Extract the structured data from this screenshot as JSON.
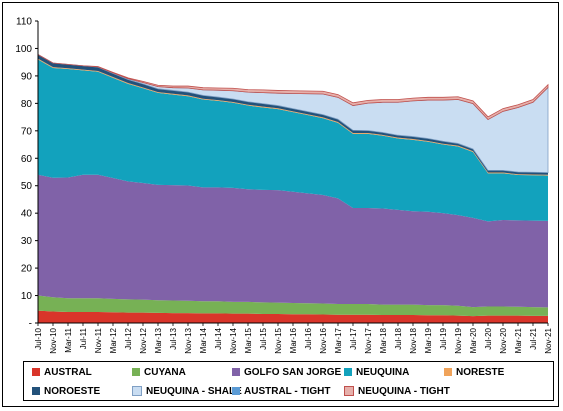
{
  "chart_data": {
    "type": "area",
    "stacked": true,
    "title": "",
    "xlabel": "",
    "ylabel": "",
    "ylim": [
      0,
      110
    ],
    "yticks": [
      "-",
      "10",
      "20",
      "30",
      "40",
      "50",
      "60",
      "70",
      "80",
      "90",
      "100",
      "110"
    ],
    "grid": false,
    "legend_position": "bottom",
    "x_tick_labels": [
      "Jul-10",
      "Nov-10",
      "Mar-11",
      "Jul-11",
      "Nov-11",
      "Mar-12",
      "Jul-12",
      "Nov-12",
      "Mar-13",
      "Jul-13",
      "Nov-13",
      "Mar-14",
      "Jul-14",
      "Nov-14",
      "Mar-15",
      "Jul-15",
      "Nov-15",
      "Mar-16",
      "Jul-16",
      "Nov-16",
      "Mar-17",
      "Jul-17",
      "Nov-17",
      "Mar-18",
      "Jul-18",
      "Nov-18",
      "Mar-19",
      "Jul-19",
      "Nov-19",
      "Mar-20",
      "Jul-20",
      "Nov-20",
      "Mar-21",
      "Jul-21",
      "Nov-21"
    ],
    "x": [
      "Jul-10",
      "Nov-10",
      "Mar-11",
      "Jul-11",
      "Nov-11",
      "Mar-12",
      "Jul-12",
      "Nov-12",
      "Mar-13",
      "Jul-13",
      "Nov-13",
      "Mar-14",
      "Jul-14",
      "Nov-14",
      "Mar-15",
      "Jul-15",
      "Nov-15",
      "Mar-16",
      "Jul-16",
      "Nov-16",
      "Mar-17",
      "Jul-17",
      "Nov-17",
      "Mar-18",
      "Jul-18",
      "Nov-18",
      "Mar-19",
      "Jul-19",
      "Nov-19",
      "Mar-20",
      "Jul-20",
      "Nov-20",
      "Mar-21",
      "Jul-21",
      "Nov-21"
    ],
    "series": [
      {
        "name": "AUSTRAL",
        "color": "#d9352a",
        "values": [
          4.5,
          4.2,
          4.0,
          4.0,
          4.0,
          3.9,
          3.8,
          3.8,
          3.7,
          3.6,
          3.6,
          3.5,
          3.5,
          3.4,
          3.4,
          3.3,
          3.3,
          3.2,
          3.2,
          3.1,
          3.0,
          3.0,
          3.0,
          2.9,
          2.9,
          2.9,
          2.8,
          2.8,
          2.7,
          2.5,
          2.7,
          2.7,
          2.7,
          2.6,
          2.6
        ]
      },
      {
        "name": "CUYANA",
        "color": "#77b155",
        "values": [
          5.5,
          5.2,
          5.0,
          5.0,
          5.0,
          4.9,
          4.8,
          4.7,
          4.6,
          4.6,
          4.5,
          4.4,
          4.4,
          4.3,
          4.3,
          4.2,
          4.1,
          4.1,
          4.0,
          4.0,
          3.9,
          3.9,
          3.9,
          3.8,
          3.8,
          3.8,
          3.7,
          3.7,
          3.6,
          3.3,
          3.3,
          3.3,
          3.2,
          3.2,
          3.1
        ]
      },
      {
        "name": "GOLFO SAN JORGE",
        "color": "#8062a8",
        "values": [
          44,
          43.5,
          44,
          45,
          45,
          44,
          43,
          42.5,
          42,
          42,
          42,
          41.5,
          41.5,
          41.5,
          41,
          41,
          41,
          40.5,
          40,
          39.5,
          38.5,
          35,
          35,
          35,
          34.5,
          34,
          34,
          33.5,
          33,
          32.5,
          31,
          31.5,
          31.5,
          31.5,
          31.5
        ]
      },
      {
        "name": "NEUQUINA",
        "color": "#12a2bd",
        "values": [
          42,
          40,
          39.5,
          38,
          37.5,
          36.5,
          35.5,
          34.5,
          33.5,
          33,
          32.5,
          32,
          31.5,
          31,
          30.5,
          30,
          29.5,
          29,
          28.5,
          28,
          27.5,
          27,
          27,
          26.5,
          26,
          26,
          25.5,
          25,
          25,
          24,
          17.5,
          17,
          16.5,
          16.5,
          16.5
        ]
      },
      {
        "name": "NORESTE",
        "color": "#f0a35a",
        "values": [
          0.3,
          0.3,
          0.3,
          0.3,
          0.3,
          0.3,
          0.3,
          0.3,
          0.3,
          0.3,
          0.3,
          0.3,
          0.3,
          0.3,
          0.3,
          0.3,
          0.3,
          0.3,
          0.3,
          0.3,
          0.3,
          0.3,
          0.3,
          0.3,
          0.3,
          0.3,
          0.3,
          0.3,
          0.3,
          0.3,
          0.3,
          0.3,
          0.3,
          0.3,
          0.3
        ]
      },
      {
        "name": "NOROESTE",
        "color": "#22517a",
        "values": [
          1.5,
          1.5,
          1.4,
          1.4,
          1.4,
          1.3,
          1.3,
          1.3,
          1.2,
          1.2,
          1.2,
          1.2,
          1.1,
          1.1,
          1.1,
          1.1,
          1.0,
          1.0,
          1.0,
          1.0,
          1.0,
          1.0,
          0.9,
          0.9,
          0.9,
          0.9,
          0.9,
          0.9,
          0.8,
          0.8,
          0.8,
          0.8,
          0.8,
          0.8,
          0.8
        ]
      },
      {
        "name": "NEUQUINA - SHALE",
        "color": "#c9ddf2",
        "values": [
          0,
          0,
          0,
          0,
          0.1,
          0.2,
          0.3,
          0.5,
          0.8,
          1.0,
          1.5,
          2.0,
          2.5,
          3.0,
          3.5,
          4.0,
          4.5,
          5.5,
          6.5,
          7.5,
          8.0,
          9.0,
          10.0,
          11.0,
          12.0,
          13.0,
          14.0,
          15.0,
          16.0,
          16.5,
          18.5,
          21.5,
          23.5,
          25.5,
          31.0
        ]
      },
      {
        "name": "AUSTRAL -  TIGHT",
        "color": "#5b9bd5",
        "values": [
          0,
          0,
          0,
          0,
          0,
          0,
          0,
          0,
          0,
          0,
          0,
          0,
          0,
          0,
          0,
          0,
          0,
          0,
          0,
          0,
          0,
          0,
          0,
          0,
          0,
          0,
          0,
          0,
          0,
          0,
          0,
          0,
          0,
          0,
          0
        ]
      },
      {
        "name": "NEUQUINA - TIGHT",
        "color": "#e6b0ab",
        "values": [
          0,
          0,
          0,
          0,
          0.1,
          0.2,
          0.3,
          0.4,
          0.5,
          0.6,
          0.7,
          0.8,
          0.8,
          0.9,
          0.9,
          1.0,
          1.0,
          1.0,
          1.0,
          1.0,
          1.0,
          1.0,
          1.0,
          1.0,
          1.0,
          1.0,
          1.0,
          1.0,
          1.0,
          1.0,
          1.0,
          1.0,
          1.0,
          1.0,
          1.0
        ]
      }
    ]
  }
}
